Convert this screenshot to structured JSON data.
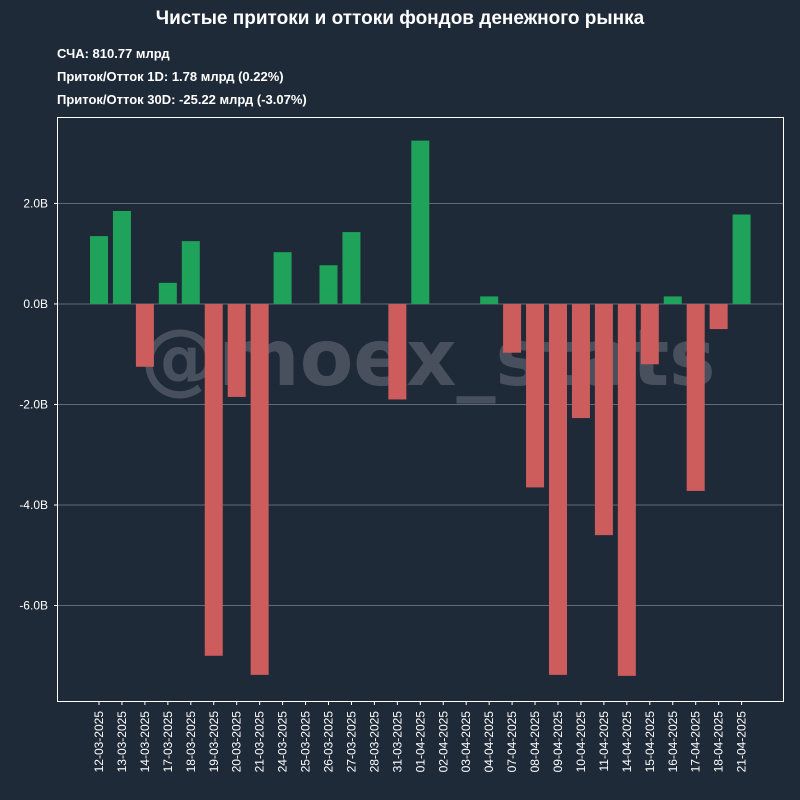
{
  "header": {
    "title": "Чистые притоки и оттоки фондов денежного рынка",
    "stats": [
      "СЧА: 810.77 млрд",
      "Приток/Отток 1D: 1.78 млрд (0.22%)",
      "Приток/Отток 30D: -25.22 млрд (-3.07%)"
    ]
  },
  "watermark": "@moex_stats",
  "colors": {
    "background": "#1f2a38",
    "positive": "#1fa35a",
    "negative": "#cd5c5c",
    "grid": "#5f6b78",
    "text": "#ffffff"
  },
  "chart_data": {
    "type": "bar",
    "title": "Чистые притоки и оттоки фондов денежного рынка",
    "xlabel": "",
    "ylabel": "",
    "ylim": [
      -7.9,
      3.7
    ],
    "grid": true,
    "yticks": [
      2.0,
      0.0,
      -2.0,
      -4.0,
      -6.0
    ],
    "ytick_labels": [
      "2.0B",
      "0.0B",
      "-2.0B",
      "-4.0B",
      "-6.0B"
    ],
    "categories": [
      "12-03-2025",
      "13-03-2025",
      "14-03-2025",
      "17-03-2025",
      "18-03-2025",
      "19-03-2025",
      "20-03-2025",
      "21-03-2025",
      "24-03-2025",
      "25-03-2025",
      "26-03-2025",
      "27-03-2025",
      "28-03-2025",
      "31-03-2025",
      "01-04-2025",
      "02-04-2025",
      "03-04-2025",
      "04-04-2025",
      "07-04-2025",
      "08-04-2025",
      "09-04-2025",
      "10-04-2025",
      "11-04-2025",
      "14-04-2025",
      "15-04-2025",
      "16-04-2025",
      "17-04-2025",
      "18-04-2025",
      "21-04-2025"
    ],
    "values": [
      1.35,
      1.85,
      -1.25,
      0.42,
      1.25,
      -7.0,
      -1.85,
      -7.38,
      1.03,
      0.0,
      0.77,
      1.43,
      0.0,
      -1.9,
      3.25,
      0.0,
      0.0,
      0.15,
      -0.97,
      -3.65,
      -7.38,
      -2.27,
      -4.6,
      -7.4,
      -1.2,
      0.15,
      -3.72,
      -0.5,
      1.78
    ]
  }
}
